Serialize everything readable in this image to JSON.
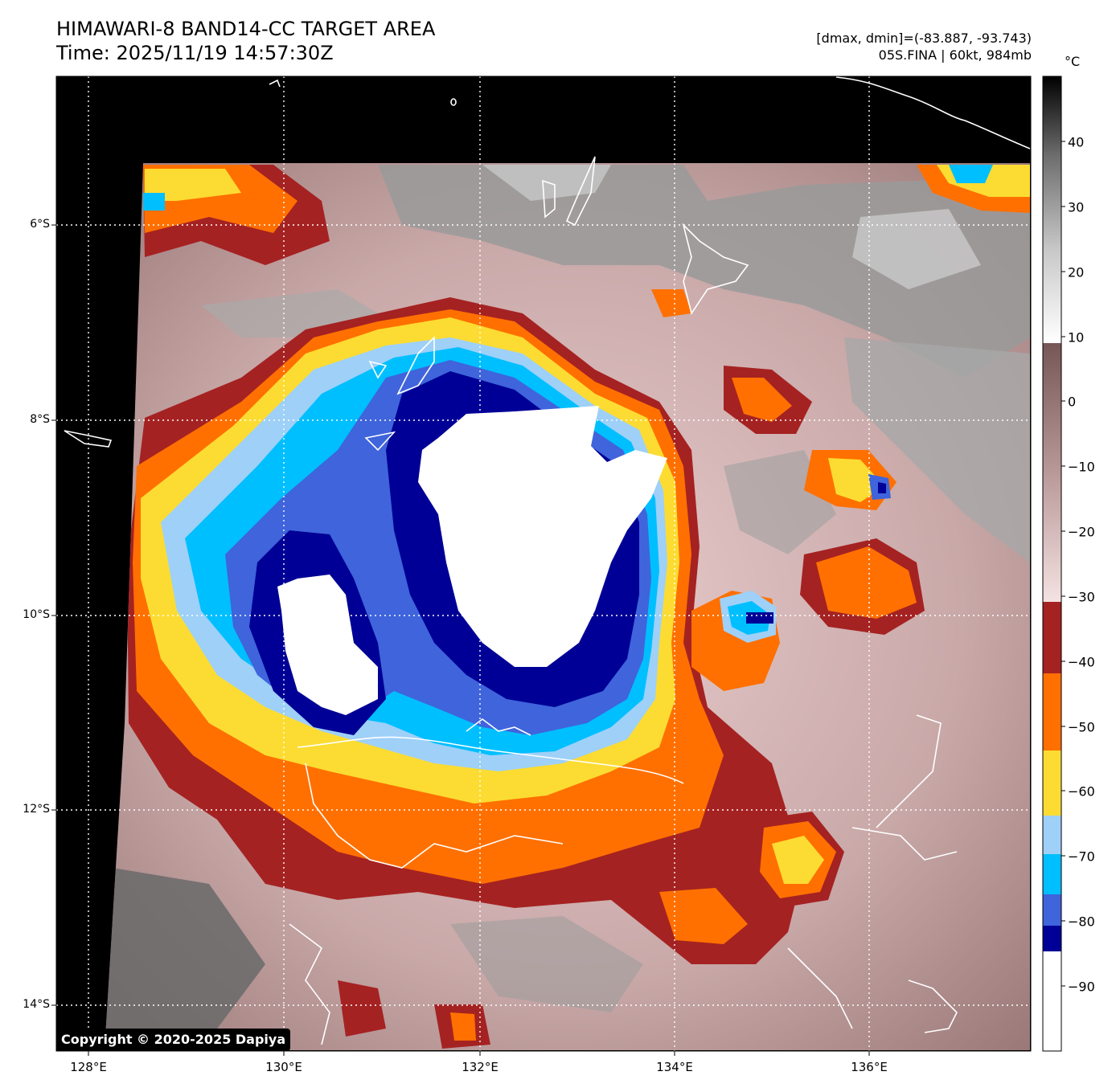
{
  "title": {
    "line1": "HIMAWARI-8 BAND14-CC TARGET AREA",
    "line2": "Time: 2025/11/19 14:57:30Z"
  },
  "info": {
    "line1": "[dmax, dmin]=(-83.887, -93.743)",
    "line2": "05S.FINA | 60kt, 984mb"
  },
  "axes": {
    "lat_labels": [
      "6°S",
      "8°S",
      "10°S",
      "12°S",
      "14°S"
    ],
    "lon_labels": [
      "128°E",
      "130°E",
      "132°E",
      "134°E",
      "136°E"
    ]
  },
  "colorbar": {
    "unit": "°C",
    "tick_labels": [
      "40",
      "30",
      "20",
      "10",
      "0",
      "−10",
      "−20",
      "−30",
      "−40",
      "−50",
      "−60",
      "−70",
      "−80",
      "−90"
    ],
    "bands": [
      {
        "from": 10,
        "to": 50,
        "colors": [
          "#ffffff",
          "#c8c8c8",
          "#7a7a7a",
          "#000000"
        ]
      },
      {
        "from": -31,
        "to": 10,
        "colors": [
          "#f2dede",
          "#ba9a9a",
          "#7a5858"
        ]
      },
      {
        "from": -40,
        "to": -31,
        "color": "#a52222"
      },
      {
        "from": -52,
        "to": -40,
        "color": "#ff7000"
      },
      {
        "from": -62,
        "to": -52,
        "color": "#fcdc32"
      },
      {
        "from": -68,
        "to": -62,
        "color": "#9ed0f8"
      },
      {
        "from": -78,
        "to": -68,
        "color": "#00bfff"
      },
      {
        "from": -82,
        "to": -78,
        "color": "#3f64dc"
      },
      {
        "from": -86,
        "to": -82,
        "color": "#000096"
      },
      {
        "from": -100,
        "to": -86,
        "color": "#ffffff"
      }
    ]
  },
  "copyright": "Copyright © 2020-2025 Dapiya"
}
